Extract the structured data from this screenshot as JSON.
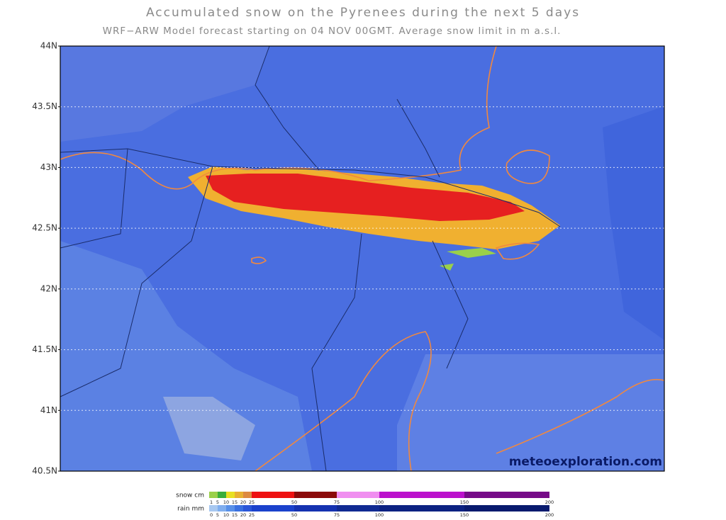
{
  "title": "Accumulated snow on the Pyrenees during the next 5 days",
  "subtitle": "WRF−ARW Model forecast starting on 04 NOV 00GMT.  Average snow limit in m a.s.l.",
  "map": {
    "latlim": [
      40.5,
      44
    ],
    "lat_ticks": [
      {
        "value": 44,
        "label": "44N"
      },
      {
        "value": 43.5,
        "label": "43.5N"
      },
      {
        "value": 43,
        "label": "43N"
      },
      {
        "value": 42.5,
        "label": "42.5N"
      },
      {
        "value": 42,
        "label": "42N"
      },
      {
        "value": 41.5,
        "label": "41.5N"
      },
      {
        "value": 41,
        "label": "41N"
      },
      {
        "value": 40.5,
        "label": "40.5N"
      }
    ],
    "grid": true
  },
  "watermark": "meteoexploration.com",
  "legend": {
    "snow": {
      "label": "snow cm",
      "bounds": [
        1,
        5,
        10,
        15,
        20,
        25,
        50,
        75,
        100,
        150,
        200
      ],
      "colors": [
        "#9ad04a",
        "#3aae3a",
        "#e8e020",
        "#e8b030",
        "#dd8a40",
        "#ee1111",
        "#8b0a0a",
        "#f08ef0",
        "#bb10cc",
        "#760a88"
      ]
    },
    "rain": {
      "label": "rain mm",
      "bounds": [
        0,
        5,
        10,
        15,
        20,
        25,
        50,
        75,
        100,
        150,
        200
      ],
      "colors": [
        "#a8c8f0",
        "#80aeee",
        "#5890e8",
        "#3a70e0",
        "#2a56d8",
        "#1b42cc",
        "#1532b0",
        "#102a92",
        "#0c2282",
        "#081a6e"
      ]
    }
  }
}
